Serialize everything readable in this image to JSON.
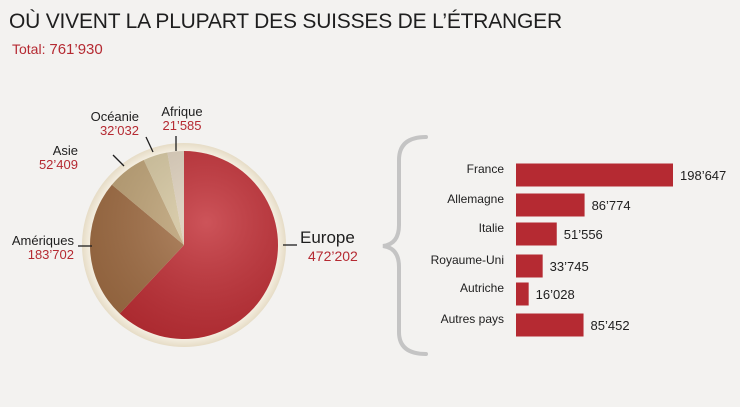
{
  "header": {
    "title": "OÙ VIVENT LA PLUPART DES SUISSES DE L’ÉTRANGER",
    "total_label": "Total:",
    "total_value": "761’930"
  },
  "colors": {
    "accent": "#b52a32",
    "text": "#1e1e1e",
    "background": "#f3f2f0",
    "brace": "#c4c4c4"
  },
  "chart_data": [
    {
      "type": "pie",
      "title": "",
      "slices": [
        {
          "label": "Europe",
          "value": 472202,
          "display": "472’202",
          "color": "#c22e35"
        },
        {
          "label": "Amériques",
          "value": 183702,
          "display": "183’702",
          "color": "#a36f45"
        },
        {
          "label": "Asie",
          "value": 52409,
          "display": "52’409",
          "color": "#c2a679"
        },
        {
          "label": "Océanie",
          "value": 32032,
          "display": "32’032",
          "color": "#dacba4"
        },
        {
          "label": "Afrique",
          "value": 21585,
          "display": "21’585",
          "color": "#e2d4c0"
        }
      ]
    },
    {
      "type": "bar",
      "orientation": "horizontal",
      "title": "",
      "categories": [
        "France",
        "Allemagne",
        "Italie",
        "Royaume-Uni",
        "Autriche",
        "Autres pays"
      ],
      "values": [
        198647,
        86774,
        51556,
        33745,
        16028,
        85452
      ],
      "value_labels": [
        "198’647",
        "86’774",
        "51’556",
        "33’745",
        "16’028",
        "85’452"
      ],
      "xlim": [
        0,
        198647
      ]
    }
  ]
}
